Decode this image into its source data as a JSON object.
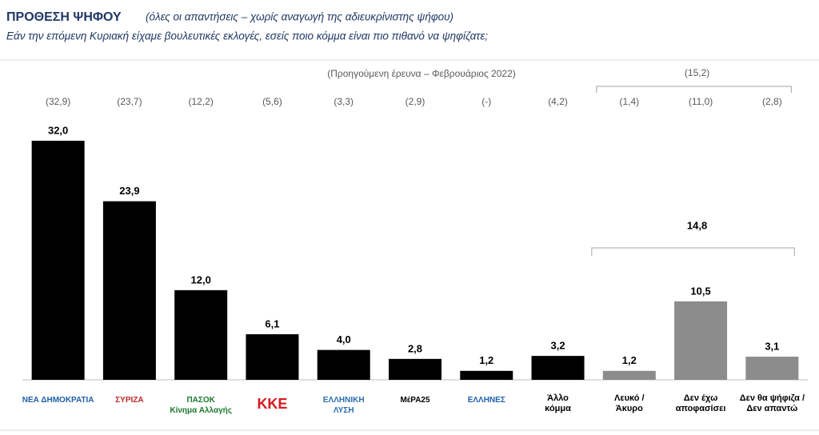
{
  "chart_data": {
    "type": "bar",
    "title": "ΠΡΟΘΕΣΗ ΨΗΦΟΥ",
    "title_note": "(όλες οι απαντήσεις – χωρίς αναγωγή της αδιευκρίνιστης ψήφου)",
    "subtitle": "Εάν την επόμενη Κυριακή είχαμε βουλευτικές εκλογές, εσείς ποιο κόμμα είναι πιο πιθανό να ψηφίζατε;",
    "categories": [
      "ΝΕΑ ΔΗΜΟΚΡΑΤΙΑ",
      "ΣΥΡΙΖΑ",
      "ΠΑΣΟΚ\nΚίνημα Αλλαγής",
      "ΚΚΕ",
      "ΕΛΛΗΝΙΚΗ\nΛΥΣΗ",
      "ΜέΡΑ25",
      "ΕΛΛΗΝΕΣ",
      "Άλλο\nκόμμα",
      "Λευκό /\nΆκυρο",
      "Δεν έχω\nαποφασίσει",
      "Δεν θα ψήφιζα /\nΔεν απαντώ"
    ],
    "label_colors": [
      "#1f5fa8",
      "#c0272d",
      "#1b7a2e",
      "#d71920",
      "#2a6fb0",
      "#000000",
      "#1d5fae",
      "#000000",
      "#000000",
      "#000000",
      "#000000"
    ],
    "values": [
      32.0,
      23.9,
      12.0,
      6.1,
      4.0,
      2.8,
      1.2,
      3.2,
      1.2,
      10.5,
      3.1
    ],
    "value_labels": [
      "32,0",
      "23,9",
      "12,0",
      "6,1",
      "4,0",
      "2,8",
      "1,2",
      "3,2",
      "1,2",
      "10,5",
      "3,1"
    ],
    "colors": [
      "#000000",
      "#000000",
      "#000000",
      "#000000",
      "#000000",
      "#000000",
      "#000000",
      "#000000",
      "#8c8c8c",
      "#8c8c8c",
      "#8c8c8c"
    ],
    "previous": {
      "label": "(Προηγούμενη έρευνα – Φεβρουάριος 2022)",
      "values": [
        32.9,
        23.7,
        12.2,
        5.6,
        3.3,
        2.9,
        null,
        4.2,
        1.4,
        11.0,
        2.8
      ],
      "value_labels": [
        "(32,9)",
        "(23,7)",
        "(12,2)",
        "(5,6)",
        "(3,3)",
        "(2,9)",
        "(-)",
        "(4,2)",
        "(1,4)",
        "(11,0)",
        "(2,8)"
      ]
    },
    "groups": [
      {
        "from": 8,
        "to": 10,
        "value": 14.8,
        "value_label": "14,8",
        "previous_value": 15.2,
        "previous_label": "(15,2)"
      }
    ],
    "ylim": [
      0,
      32
    ]
  }
}
